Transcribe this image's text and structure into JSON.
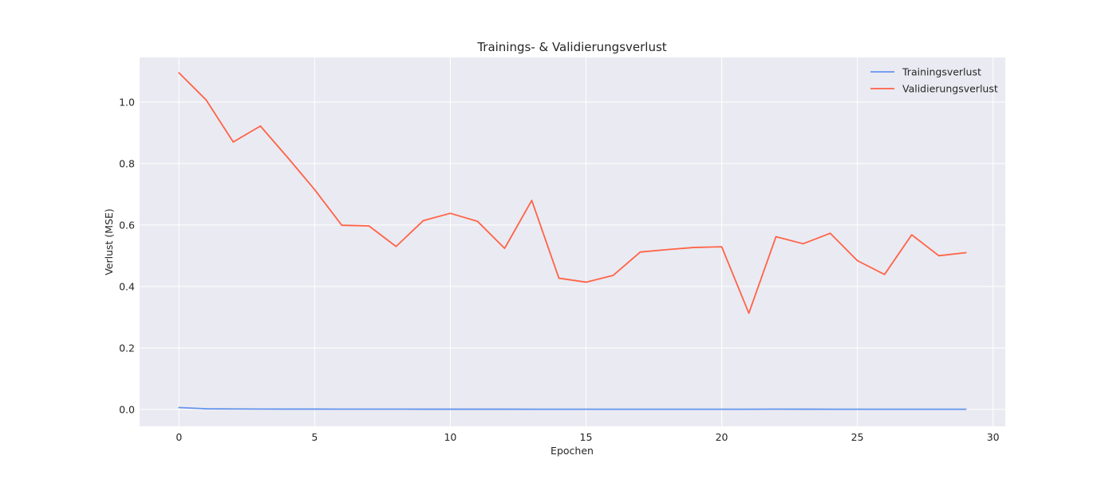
{
  "chart_data": {
    "type": "line",
    "title": "Trainings- & Validierungsverlust",
    "xlabel": "Epochen",
    "ylabel": "Verlust (MSE)",
    "xlim": [
      -1.45,
      30.45
    ],
    "ylim": [
      -0.055,
      1.145
    ],
    "xticks": [
      0,
      5,
      10,
      15,
      20,
      25,
      30
    ],
    "yticks": [
      0.0,
      0.2,
      0.4,
      0.6,
      0.8,
      1.0
    ],
    "ytick_labels": [
      "0.0",
      "0.2",
      "0.4",
      "0.6",
      "0.8",
      "1.0"
    ],
    "grid": true,
    "legend_position": "top-right",
    "x": [
      0,
      1,
      2,
      3,
      4,
      5,
      6,
      7,
      8,
      9,
      10,
      11,
      12,
      13,
      14,
      15,
      16,
      17,
      18,
      19,
      20,
      21,
      22,
      23,
      24,
      25,
      26,
      27,
      28,
      29
    ],
    "series": [
      {
        "name": "Trainingsverlust",
        "color": "#6495ed",
        "values": [
          0.006,
          0.002,
          0.0015,
          0.0012,
          0.001,
          0.001,
          0.0009,
          0.0008,
          0.0008,
          0.0007,
          0.0007,
          0.0007,
          0.0007,
          0.0006,
          0.0006,
          0.0006,
          0.0006,
          0.0006,
          0.0006,
          0.0006,
          0.0006,
          0.0006,
          0.0009,
          0.0007,
          0.0006,
          0.0006,
          0.0006,
          0.0005,
          0.0005,
          0.0005
        ]
      },
      {
        "name": "Validierungsverlust",
        "color": "#ff6347",
        "values": [
          1.095,
          1.007,
          0.87,
          0.922,
          0.82,
          0.715,
          0.599,
          0.597,
          0.53,
          0.614,
          0.638,
          0.612,
          0.524,
          0.68,
          0.427,
          0.414,
          0.436,
          0.512,
          0.52,
          0.527,
          0.529,
          0.313,
          0.562,
          0.539,
          0.573,
          0.484,
          0.439,
          0.568,
          0.5,
          0.51
        ]
      }
    ]
  },
  "colors": {
    "plot_background": "#eaeaf2",
    "grid": "#ffffff",
    "text": "#262626"
  }
}
